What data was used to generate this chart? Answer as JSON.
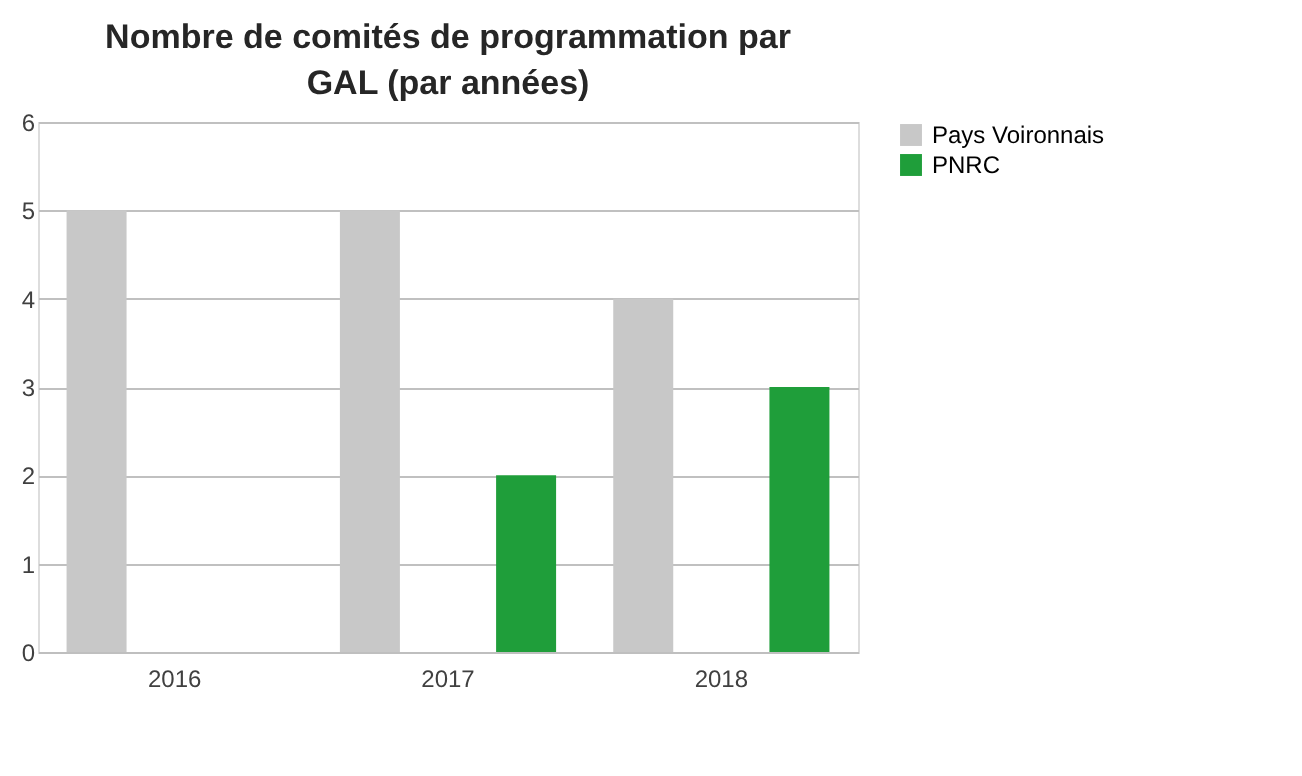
{
  "chart_data": {
    "type": "bar",
    "title": "Nombre de comités de programmation par GAL (par années)",
    "categories": [
      "2016",
      "2017",
      "2018"
    ],
    "series": [
      {
        "name": "Pays Voironnais",
        "color": "#c8c8c8",
        "values": [
          5,
          5,
          4
        ]
      },
      {
        "name": "PNRC",
        "color": "#1f9e3a",
        "values": [
          null,
          2,
          3
        ]
      }
    ],
    "ylim": [
      0,
      6
    ],
    "yticks": [
      0,
      1,
      2,
      3,
      4,
      5,
      6
    ],
    "grid": "y",
    "legend": "right"
  }
}
